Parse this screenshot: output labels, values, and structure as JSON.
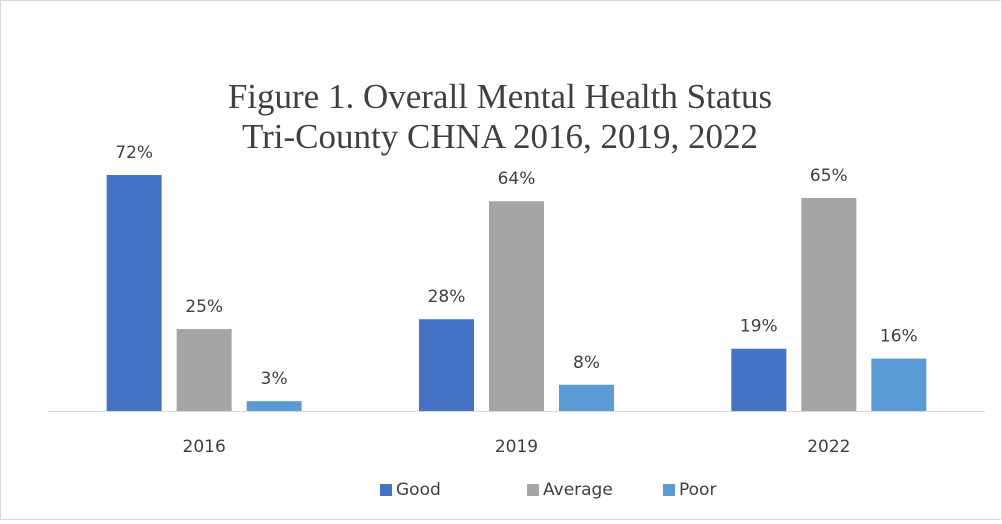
{
  "chart_data": {
    "type": "bar",
    "title": [
      "Figure 1. Overall Mental Health Status",
      "Tri-County CHNA 2016, 2019, 2022"
    ],
    "categories": [
      "2016",
      "2019",
      "2022"
    ],
    "series": [
      {
        "name": "Good",
        "color": "#4472c4",
        "values": [
          72,
          28,
          19
        ],
        "value_labels": [
          "72%",
          "28%",
          "19%"
        ]
      },
      {
        "name": "Average",
        "color": "#a5a5a5",
        "values": [
          25,
          64,
          65
        ],
        "value_labels": [
          "25%",
          "64%",
          "65%"
        ]
      },
      {
        "name": "Poor",
        "color": "#5b9bd5",
        "values": [
          3,
          8,
          16
        ],
        "value_labels": [
          "3%",
          "8%",
          "16%"
        ]
      }
    ],
    "legend": "bottom"
  }
}
